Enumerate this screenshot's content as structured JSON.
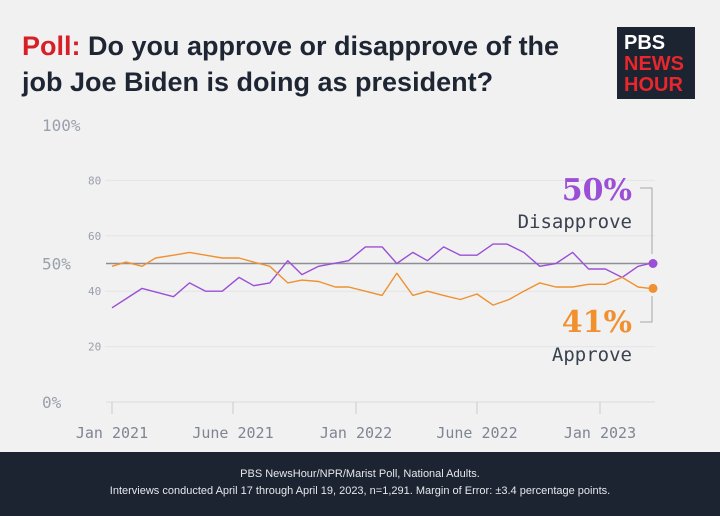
{
  "title": {
    "highlight": "Poll:",
    "text": " Do you approve or disapprove of the job Joe Biden is doing as president?"
  },
  "logo": {
    "line1": "PBS",
    "line2": "NEWS",
    "line3": "HOUR"
  },
  "colors": {
    "disapprove": "#9b4fd6",
    "approve": "#f0902f",
    "reference": "#8c8f96",
    "background": "#f1f1f1",
    "footer": "#1c2331"
  },
  "chart_data": {
    "type": "line",
    "ylim": [
      0,
      100
    ],
    "y_ticks": [
      {
        "value": 100,
        "label": "100%"
      },
      {
        "value": 80,
        "label": "80"
      },
      {
        "value": 60,
        "label": "60"
      },
      {
        "value": 50,
        "label": "50%"
      },
      {
        "value": 40,
        "label": "40"
      },
      {
        "value": 20,
        "label": "20"
      },
      {
        "value": 0,
        "label": "0%"
      }
    ],
    "x_ticks": [
      "Jan 2021",
      "June 2021",
      "Jan 2022",
      "June 2022",
      "Jan 2023"
    ],
    "reference_line": 50,
    "series": [
      {
        "name": "Disapprove",
        "end_label": "50%",
        "color": "#9b4fd6",
        "x": [
          "2021-01-01",
          "2021-02-15",
          "2021-04-03",
          "2021-04-27",
          "2021-05-21",
          "2021-06-15",
          "2021-07-10",
          "2021-08-01",
          "2021-08-25",
          "2021-09-21",
          "2021-10-12",
          "2021-11-06",
          "2021-12-21",
          "2022-01-15",
          "2022-02-09",
          "2022-03-03",
          "2022-03-27",
          "2022-04-18",
          "2022-05-12",
          "2022-06-06",
          "2022-07-01",
          "2022-07-25",
          "2022-08-15",
          "2022-09-09",
          "2022-10-03",
          "2022-10-27",
          "2022-11-21",
          "2022-12-15",
          "2023-01-09",
          "2023-02-03",
          "2023-02-27",
          "2023-03-17"
        ],
        "values": [
          34,
          41,
          38,
          43,
          40,
          40,
          45,
          42,
          43,
          51,
          46,
          49,
          51,
          56,
          56,
          50,
          54,
          51,
          56,
          53,
          53,
          57,
          57,
          54,
          49,
          50,
          54,
          48,
          48,
          45,
          49,
          50
        ]
      },
      {
        "name": "Approve",
        "end_label": "41%",
        "color": "#f0902f",
        "x": [
          "2021-01-01",
          "2021-01-22",
          "2021-02-15",
          "2021-03-07",
          "2021-04-03",
          "2021-04-27",
          "2021-05-21",
          "2021-06-15",
          "2021-07-10",
          "2021-08-01",
          "2021-08-25",
          "2021-09-21",
          "2021-10-12",
          "2021-11-06",
          "2021-12-01",
          "2021-12-21",
          "2022-01-15",
          "2022-02-09",
          "2022-03-03",
          "2022-03-27",
          "2022-04-18",
          "2022-05-12",
          "2022-06-06",
          "2022-07-01",
          "2022-07-25",
          "2022-08-18",
          "2022-09-09",
          "2022-10-03",
          "2022-10-27",
          "2022-11-21",
          "2022-12-15",
          "2023-01-09",
          "2023-02-03",
          "2023-02-27",
          "2023-03-17"
        ],
        "values": [
          49,
          50.5,
          49,
          52,
          53,
          54,
          53,
          52,
          52,
          50.5,
          49,
          43,
          44,
          43.5,
          41.5,
          41.5,
          40,
          38.5,
          46.5,
          38.5,
          40,
          38.5,
          37,
          39,
          35,
          37,
          40,
          43,
          41.5,
          41.5,
          42.5,
          42.5,
          45,
          41.5,
          41
        ]
      }
    ]
  },
  "footer": {
    "line1": "PBS NewsHour/NPR/Marist Poll, National Adults.",
    "line2": "Interviews conducted April 17 through April 19, 2023, n=1,291. Margin of Error: ±3.4 percentage points."
  }
}
